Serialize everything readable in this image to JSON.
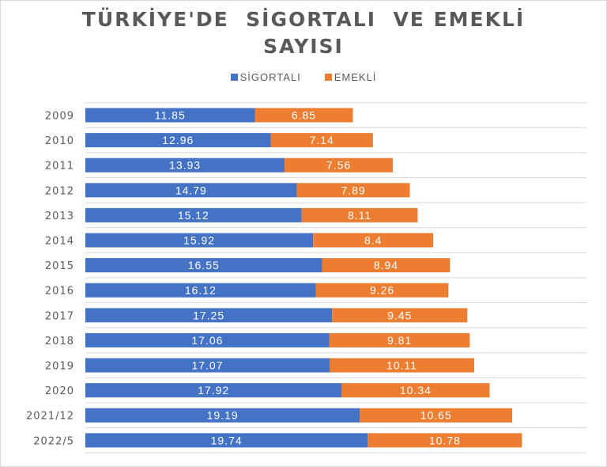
{
  "chart_data": {
    "type": "bar",
    "orientation": "horizontal",
    "stacked": true,
    "title_lines": [
      "TÜRKİYE'DE  SİGORTALI  VE EMEKLİ",
      "SAYISI"
    ],
    "categories": [
      "2009",
      "2010",
      "2011",
      "2012",
      "2013",
      "2014",
      "2015",
      "2016",
      "2017",
      "2018",
      "2019",
      "2020",
      "2021/12",
      "2022/5"
    ],
    "series": [
      {
        "name": "SİGORTALI",
        "color": "#4472c4",
        "values": [
          11.85,
          12.96,
          13.93,
          14.79,
          15.12,
          15.92,
          16.55,
          16.12,
          17.25,
          17.06,
          17.07,
          17.92,
          19.19,
          19.74
        ]
      },
      {
        "name": "EMEKLİ",
        "color": "#ed7d31",
        "values": [
          6.85,
          7.14,
          7.56,
          7.89,
          8.11,
          8.4,
          8.94,
          9.26,
          9.45,
          9.81,
          10.11,
          10.34,
          10.65,
          10.78
        ]
      }
    ],
    "xlim": [
      0,
      35
    ],
    "grid": true,
    "legend_position": "top"
  }
}
